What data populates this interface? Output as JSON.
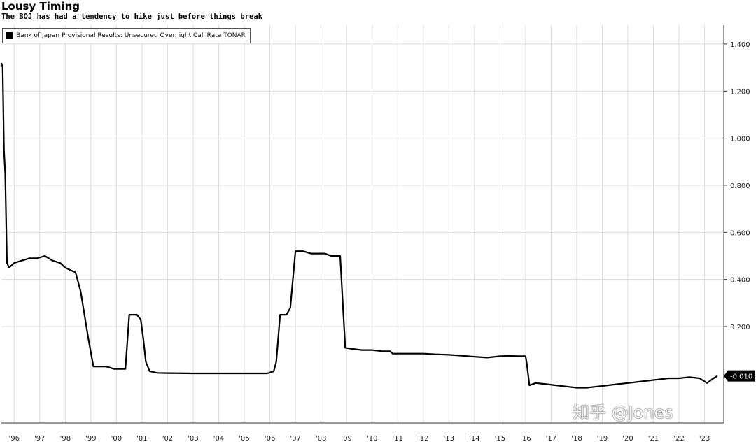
{
  "header": {
    "title": "Lousy Timing",
    "subtitle": "The BOJ has had a tendency to hike just before things break"
  },
  "legend": {
    "label": "Bank of Japan Provisional Results: Unsecured Overnight Call Rate TONAR",
    "color": "#000000"
  },
  "watermark": "知乎 @Jones",
  "chart_data": {
    "type": "line",
    "title": "Lousy Timing",
    "subtitle": "The BOJ has had a tendency to hike just before things break",
    "legend_position": "top-left",
    "grid": true,
    "y_axis_side": "right",
    "xlim": [
      1995.5,
      2023.75
    ],
    "ylim": [
      -0.21,
      1.48
    ],
    "y_ticks": [
      0.2,
      0.4,
      0.6,
      0.8,
      1.0,
      1.2,
      1.4
    ],
    "y_tick_labels": [
      "0.200",
      "0.400",
      "0.600",
      "0.800",
      "1.000",
      "1.200",
      "1.400"
    ],
    "x_ticks": [
      1996,
      1997,
      1998,
      1999,
      2000,
      2001,
      2002,
      2003,
      2004,
      2005,
      2006,
      2007,
      2008,
      2009,
      2010,
      2011,
      2012,
      2013,
      2014,
      2015,
      2016,
      2017,
      2018,
      2019,
      2020,
      2021,
      2022,
      2023
    ],
    "x_tick_labels": [
      "'96",
      "'97",
      "'98",
      "'99",
      "'00",
      "'01",
      "'02",
      "'03",
      "'04",
      "'05",
      "'06",
      "'07",
      "'08",
      "'09",
      "'10",
      "'11",
      "'12",
      "'13",
      "'14",
      "'15",
      "'16",
      "'17",
      "'18",
      "'19",
      "'20",
      "'21",
      "'22",
      "'23"
    ],
    "last_value_label": "-0.010",
    "series": [
      {
        "name": "Bank of Japan Provisional Results: Unsecured Overnight Call Rate TONAR",
        "color": "#000000",
        "x": [
          1995.5,
          1995.55,
          1995.6,
          1995.65,
          1995.72,
          1995.8,
          1996.0,
          1996.3,
          1996.6,
          1996.9,
          1997.2,
          1997.5,
          1997.8,
          1998.0,
          1998.2,
          1998.4,
          1998.6,
          1998.75,
          1998.9,
          1999.1,
          1999.3,
          1999.6,
          1999.9,
          2000.1,
          2000.35,
          2000.5,
          2000.65,
          2000.8,
          2000.95,
          2001.05,
          2001.15,
          2001.3,
          2001.6,
          2002.0,
          2003.0,
          2004.0,
          2005.0,
          2005.9,
          2006.15,
          2006.25,
          2006.4,
          2006.55,
          2006.65,
          2006.8,
          2007.0,
          2007.3,
          2007.6,
          2007.9,
          2008.15,
          2008.4,
          2008.75,
          2008.85,
          2008.95,
          2009.2,
          2009.6,
          2010.0,
          2010.4,
          2010.7,
          2010.8,
          2011.2,
          2011.6,
          2012.0,
          2012.5,
          2013.0,
          2013.5,
          2014.0,
          2014.5,
          2015.0,
          2015.4,
          2015.7,
          2016.0,
          2016.05,
          2016.15,
          2016.4,
          2016.8,
          2017.2,
          2017.6,
          2018.0,
          2018.4,
          2018.8,
          2019.2,
          2019.6,
          2020.0,
          2020.4,
          2020.8,
          2021.2,
          2021.6,
          2022.0,
          2022.4,
          2022.8,
          2023.1,
          2023.35,
          2023.5
        ],
        "values": [
          1.32,
          1.3,
          0.95,
          0.85,
          0.47,
          0.45,
          0.47,
          0.48,
          0.49,
          0.49,
          0.5,
          0.48,
          0.47,
          0.45,
          0.44,
          0.43,
          0.35,
          0.25,
          0.15,
          0.03,
          0.03,
          0.03,
          0.02,
          0.02,
          0.02,
          0.25,
          0.25,
          0.25,
          0.23,
          0.15,
          0.05,
          0.01,
          0.003,
          0.002,
          0.001,
          0.001,
          0.001,
          0.001,
          0.01,
          0.05,
          0.25,
          0.25,
          0.25,
          0.28,
          0.52,
          0.52,
          0.51,
          0.51,
          0.51,
          0.5,
          0.5,
          0.3,
          0.11,
          0.105,
          0.1,
          0.1,
          0.095,
          0.095,
          0.085,
          0.085,
          0.085,
          0.085,
          0.082,
          0.08,
          0.076,
          0.072,
          0.068,
          0.074,
          0.075,
          0.074,
          0.074,
          0.04,
          -0.05,
          -0.04,
          -0.045,
          -0.05,
          -0.055,
          -0.06,
          -0.06,
          -0.055,
          -0.05,
          -0.045,
          -0.04,
          -0.035,
          -0.03,
          -0.025,
          -0.02,
          -0.02,
          -0.015,
          -0.02,
          -0.04,
          -0.02,
          -0.01
        ]
      }
    ]
  }
}
